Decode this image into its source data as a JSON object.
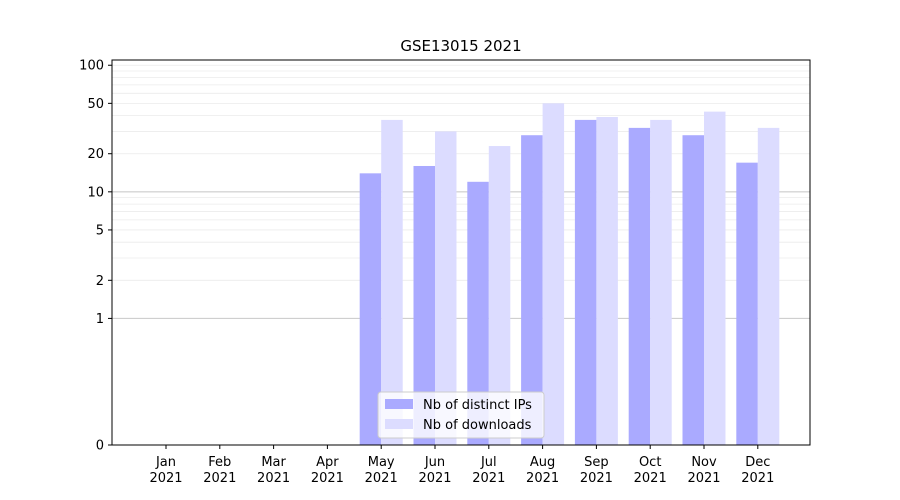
{
  "chart_data": {
    "type": "bar",
    "title": "GSE13015 2021",
    "xlabel": "",
    "ylabel": "",
    "yscale": "symlog",
    "ylim": [
      0,
      110
    ],
    "yticks": [
      0,
      1,
      2,
      5,
      10,
      20,
      50,
      100
    ],
    "categories": [
      [
        "Jan",
        "2021"
      ],
      [
        "Feb",
        "2021"
      ],
      [
        "Mar",
        "2021"
      ],
      [
        "Apr",
        "2021"
      ],
      [
        "May",
        "2021"
      ],
      [
        "Jun",
        "2021"
      ],
      [
        "Jul",
        "2021"
      ],
      [
        "Aug",
        "2021"
      ],
      [
        "Sep",
        "2021"
      ],
      [
        "Oct",
        "2021"
      ],
      [
        "Nov",
        "2021"
      ],
      [
        "Dec",
        "2021"
      ]
    ],
    "series": [
      {
        "name": "Nb of distinct IPs",
        "color": "#aaaaff",
        "values": [
          0,
          0,
          0,
          0,
          14,
          16,
          12,
          28,
          37,
          32,
          28,
          17
        ]
      },
      {
        "name": "Nb of downloads",
        "color": "#dcdcff",
        "values": [
          0,
          0,
          0,
          0,
          37,
          30,
          23,
          50,
          39,
          37,
          43,
          32
        ]
      }
    ],
    "grid": true,
    "legend": "lower-center"
  }
}
